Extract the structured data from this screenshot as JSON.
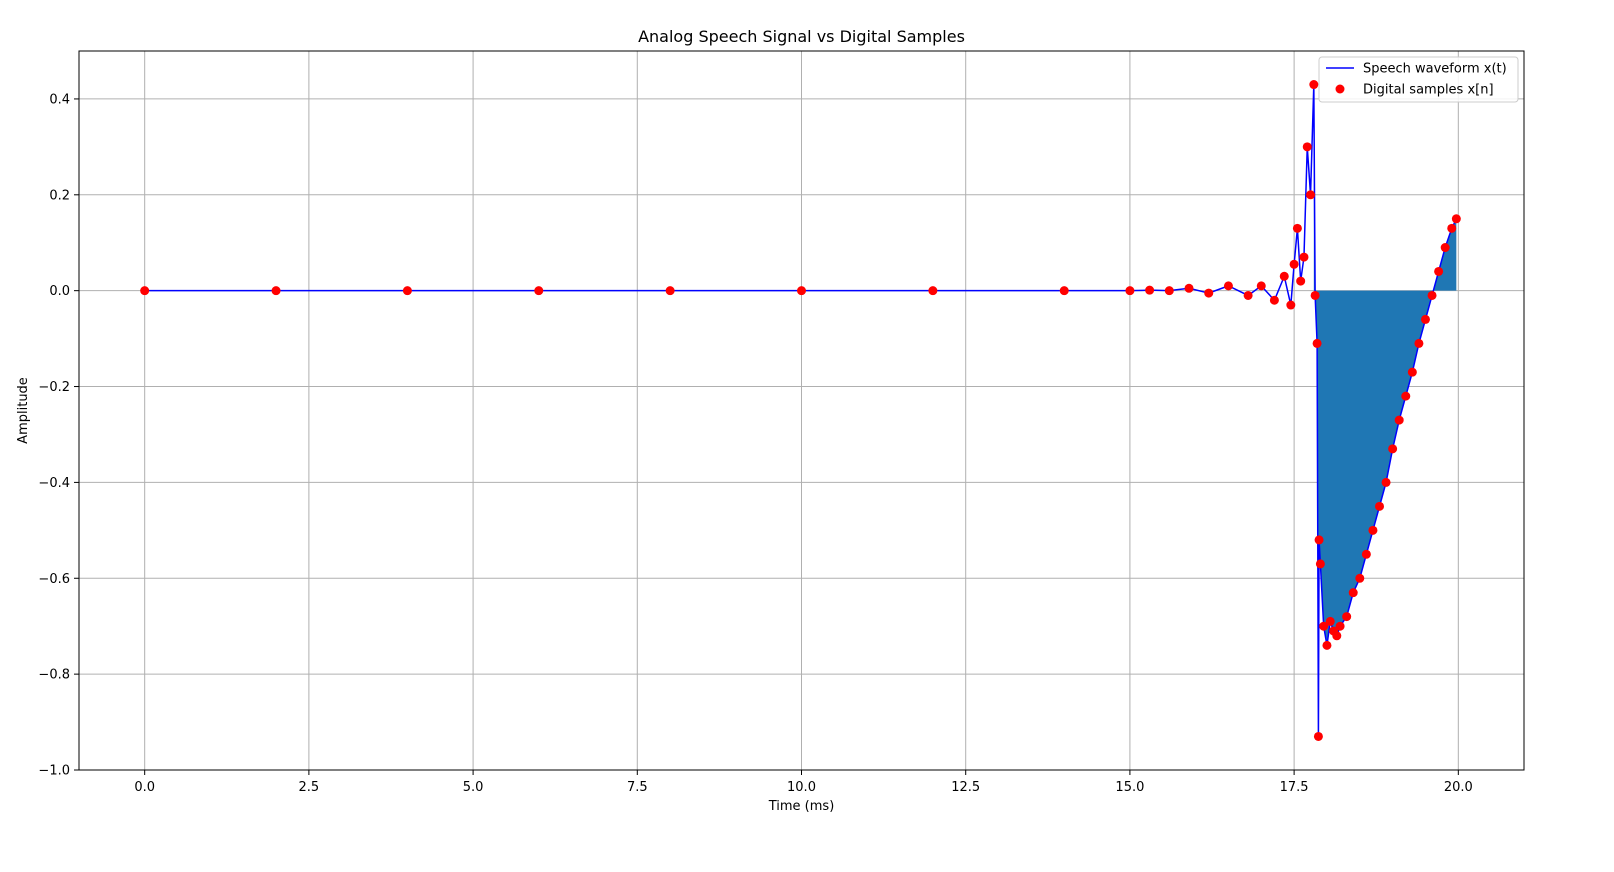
{
  "chart_data": {
    "type": "line",
    "title": "Analog Speech Signal vs Digital Samples",
    "xlabel": "Time (ms)",
    "ylabel": "Amplitude",
    "xlim": [
      -1.0,
      21.0
    ],
    "ylim": [
      -1.0,
      0.5
    ],
    "x_ticks": [
      0.0,
      2.5,
      5.0,
      7.5,
      10.0,
      12.5,
      15.0,
      17.5,
      20.0
    ],
    "x_tick_labels": [
      "0.0",
      "2.5",
      "5.0",
      "7.5",
      "10.0",
      "12.5",
      "15.0",
      "17.5",
      "20.0"
    ],
    "y_ticks": [
      0.4,
      0.2,
      0.0,
      -0.2,
      -0.4,
      -0.6,
      -0.8,
      -1.0
    ],
    "y_tick_labels": [
      "0.4",
      "0.2",
      "0.0",
      "−0.2",
      "−0.4",
      "−0.6",
      "−0.8",
      "−1.0"
    ],
    "grid": true,
    "legend": {
      "placement": "top-right",
      "entries": [
        "Speech waveform x(t)",
        "Digital samples x[n]"
      ]
    },
    "colors": {
      "line": "#0000ff",
      "markers": "#ff0000",
      "fill": "#1f77b4",
      "grid": "#b0b0b0"
    },
    "series": [
      {
        "name": "Speech waveform x(t)",
        "x": [
          0.0,
          2.0,
          4.0,
          6.0,
          8.0,
          10.0,
          12.0,
          14.0,
          15.0,
          15.3,
          15.6,
          15.9,
          16.2,
          16.5,
          16.8,
          17.0,
          17.2,
          17.35,
          17.45,
          17.5,
          17.55,
          17.6,
          17.65,
          17.7,
          17.75,
          17.8,
          17.82,
          17.85,
          17.87,
          17.88,
          17.9,
          17.95,
          18.0,
          18.05,
          18.1,
          18.15,
          18.2,
          18.3,
          18.4,
          18.5,
          18.6,
          18.7,
          18.8,
          18.9,
          19.0,
          19.1,
          19.2,
          19.3,
          19.4,
          19.5,
          19.6,
          19.7,
          19.8,
          19.9,
          19.97
        ],
        "y": [
          0.0,
          0.0,
          0.0,
          0.0,
          0.0,
          0.0,
          0.0,
          0.0,
          0.0,
          0.001,
          0.0,
          0.005,
          -0.005,
          0.01,
          -0.01,
          0.01,
          -0.02,
          0.03,
          -0.03,
          0.055,
          0.13,
          0.02,
          0.07,
          0.3,
          0.2,
          0.43,
          -0.01,
          -0.11,
          -0.93,
          -0.52,
          -0.57,
          -0.7,
          -0.74,
          -0.69,
          -0.71,
          -0.72,
          -0.7,
          -0.68,
          -0.63,
          -0.6,
          -0.55,
          -0.5,
          -0.45,
          -0.4,
          -0.33,
          -0.27,
          -0.22,
          -0.17,
          -0.11,
          -0.06,
          -0.01,
          0.04,
          0.09,
          0.13,
          0.15
        ]
      },
      {
        "name": "Digital samples x[n]",
        "x": [
          0.0,
          2.0,
          4.0,
          6.0,
          8.0,
          10.0,
          12.0,
          14.0,
          15.0,
          15.3,
          15.6,
          15.9,
          16.2,
          16.5,
          16.8,
          17.0,
          17.2,
          17.35,
          17.45,
          17.5,
          17.55,
          17.6,
          17.65,
          17.7,
          17.75,
          17.8,
          17.82,
          17.85,
          17.87,
          17.88,
          17.9,
          17.95,
          18.0,
          18.05,
          18.1,
          18.15,
          18.2,
          18.3,
          18.4,
          18.5,
          18.6,
          18.7,
          18.8,
          18.9,
          19.0,
          19.1,
          19.2,
          19.3,
          19.4,
          19.5,
          19.6,
          19.7,
          19.8,
          19.9,
          19.97
        ],
        "y": [
          0.0,
          0.0,
          0.0,
          0.0,
          0.0,
          0.0,
          0.0,
          0.0,
          0.0,
          0.001,
          0.0,
          0.005,
          -0.005,
          0.01,
          -0.01,
          0.01,
          -0.02,
          0.03,
          -0.03,
          0.055,
          0.13,
          0.02,
          0.07,
          0.3,
          0.2,
          0.43,
          -0.01,
          -0.11,
          -0.93,
          -0.52,
          -0.57,
          -0.7,
          -0.74,
          -0.69,
          -0.71,
          -0.72,
          -0.7,
          -0.68,
          -0.63,
          -0.6,
          -0.55,
          -0.5,
          -0.45,
          -0.4,
          -0.33,
          -0.27,
          -0.22,
          -0.17,
          -0.11,
          -0.06,
          -0.01,
          0.04,
          0.09,
          0.13,
          0.15
        ]
      }
    ],
    "fill_region": {
      "x_start": 17.8,
      "x_end": 19.97
    }
  }
}
